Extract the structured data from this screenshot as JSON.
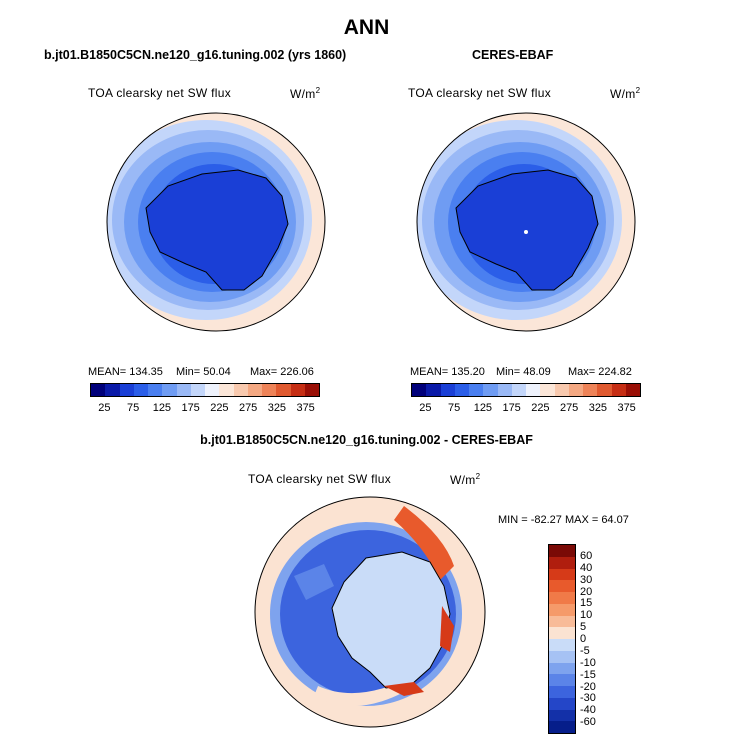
{
  "title": "ANN",
  "panels": [
    {
      "title": "b.jt01.B1850C5CN.ne120_g16.tuning.002 (yrs 1860)",
      "variable": "TOA clearsky net SW flux",
      "units": "W/m",
      "units_exp": "2",
      "mean_label": "MEAN= 134.35",
      "min_label": "Min= 50.04",
      "max_label": "Max= 226.06"
    },
    {
      "title": "CERES-EBAF",
      "variable": "TOA clearsky net SW flux",
      "units": "W/m",
      "units_exp": "2",
      "mean_label": "MEAN= 135.20",
      "min_label": "Min= 48.09",
      "max_label": "Max= 224.82"
    }
  ],
  "top_colorbar": {
    "colors": [
      "#00007a",
      "#0a1aa8",
      "#1a3fd6",
      "#2b5ee8",
      "#4a7ff0",
      "#6f9cf3",
      "#9ab9f6",
      "#c3d6fa",
      "#eef2fc",
      "#fbe6d8",
      "#f8c9ae",
      "#f4a882",
      "#ee8358",
      "#e05a30",
      "#c62e14",
      "#9a0f06"
    ],
    "ticks": [
      "25",
      "75",
      "125",
      "175",
      "225",
      "275",
      "325",
      "375"
    ]
  },
  "diff": {
    "title": "b.jt01.B1850C5CN.ne120_g16.tuning.002 - CERES-EBAF",
    "variable": "TOA clearsky net SW flux",
    "units": "W/m",
    "units_exp": "2",
    "minmax_label": "MIN = -82.27 MAX =  64.07",
    "colorbar": {
      "colors": [
        "#7a0a06",
        "#b01e0e",
        "#d63a18",
        "#e85a2c",
        "#f07a48",
        "#f59a6a",
        "#f8bb98",
        "#fbe3d2",
        "#c9dcf8",
        "#a6c2f4",
        "#7ea3ee",
        "#5b84e8",
        "#3c64de",
        "#2446c8",
        "#1330a8",
        "#061e8a"
      ],
      "ticks": [
        "60",
        "40",
        "30",
        "20",
        "15",
        "10",
        "5",
        "0",
        "-5",
        "-10",
        "-15",
        "-20",
        "-30",
        "-40",
        "-60"
      ]
    }
  }
}
